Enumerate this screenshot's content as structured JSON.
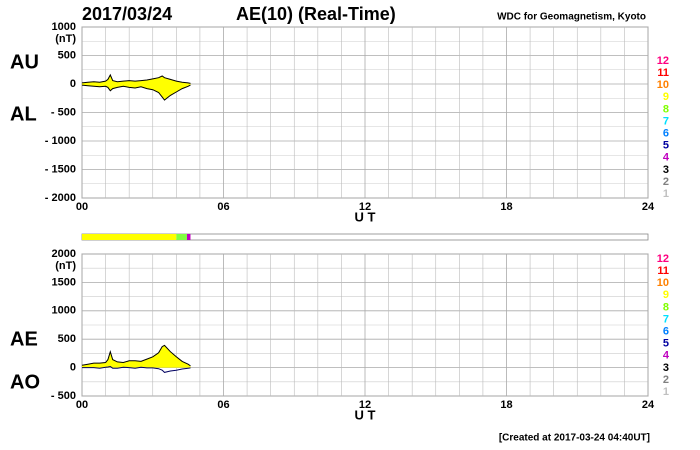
{
  "header": {
    "date": "2017/03/24",
    "title": "AE(10) (Real-Time)",
    "source": "WDC for Geomagnetism, Kyoto"
  },
  "footer": "[Created at 2017-03-24 04:40UT]",
  "coverage": [
    {
      "from": 0,
      "to": 4.0,
      "color": "#ffff00"
    },
    {
      "from": 4.0,
      "to": 4.45,
      "color": "#80ff40"
    },
    {
      "from": 4.45,
      "to": 4.6,
      "color": "#c000c0"
    }
  ],
  "chart_data": [
    {
      "type": "area",
      "ylabel": "(nT)",
      "xlabel": "U T",
      "x": [
        0,
        0.25,
        0.5,
        0.75,
        1,
        1.1,
        1.2,
        1.3,
        1.5,
        1.75,
        2,
        2.25,
        2.5,
        2.75,
        3,
        3.25,
        3.4,
        3.5,
        3.75,
        4,
        4.25,
        4.5,
        4.6
      ],
      "series": [
        {
          "name": "AU",
          "color": "#ffff00",
          "line_color": "#000000",
          "fill": true,
          "values": [
            20,
            30,
            40,
            30,
            50,
            80,
            160,
            60,
            40,
            50,
            60,
            50,
            60,
            70,
            90,
            110,
            140,
            110,
            80,
            50,
            30,
            20,
            10
          ]
        },
        {
          "name": "AL",
          "color": "#ffff00",
          "line_color": "#000000",
          "fill": true,
          "values": [
            -20,
            -30,
            -40,
            -50,
            -40,
            -60,
            -120,
            -80,
            -60,
            -40,
            -60,
            -70,
            -50,
            -80,
            -100,
            -150,
            -230,
            -280,
            -200,
            -140,
            -80,
            -40,
            -20
          ]
        }
      ],
      "xlim": [
        0,
        24
      ],
      "xticks": [
        {
          "value": 0,
          "label": "00"
        },
        {
          "value": 6,
          "label": "06"
        },
        12,
        18,
        24
      ],
      "ylim": [
        -2000,
        1000
      ],
      "yticks": [
        1000,
        500,
        0,
        {
          "value": -500,
          "label": "- 500"
        },
        {
          "value": -1000,
          "label": "- 1000"
        },
        {
          "value": -1500,
          "label": "- 1500"
        },
        {
          "value": -2000,
          "label": "- 2000"
        }
      ],
      "grid": true,
      "station_colors": [
        {
          "label": "12",
          "color": "#ff0080"
        },
        {
          "label": "11",
          "color": "#ff0000"
        },
        {
          "label": "10",
          "color": "#ff8000"
        },
        {
          "label": "9",
          "color": "#ffff00"
        },
        {
          "label": "8",
          "color": "#80ff00"
        },
        {
          "label": "7",
          "color": "#00e0ff"
        },
        {
          "label": "6",
          "color": "#0080ff"
        },
        {
          "label": "5",
          "color": "#0000a0"
        },
        {
          "label": "4",
          "color": "#c000c0"
        },
        {
          "label": "3",
          "color": "#000000"
        },
        {
          "label": "2",
          "color": "#808080"
        },
        {
          "label": "1",
          "color": "#c0c0c0"
        }
      ]
    },
    {
      "type": "area",
      "ylabel": "(nT)",
      "xlabel": "U T",
      "x": [
        0,
        0.25,
        0.5,
        0.75,
        1,
        1.1,
        1.2,
        1.3,
        1.5,
        1.75,
        2,
        2.25,
        2.5,
        2.75,
        3,
        3.25,
        3.4,
        3.5,
        3.75,
        4,
        4.25,
        4.5,
        4.6
      ],
      "series": [
        {
          "name": "AE",
          "color": "#ffff00",
          "line_color": "#000000",
          "fill": true,
          "values": [
            40,
            60,
            80,
            80,
            90,
            140,
            280,
            140,
            100,
            90,
            120,
            120,
            110,
            150,
            190,
            260,
            370,
            390,
            280,
            190,
            110,
            60,
            30
          ]
        },
        {
          "name": "AO",
          "color": "#ffff00",
          "line_color": "#000060",
          "fill": false,
          "values": [
            0,
            0,
            0,
            -10,
            5,
            10,
            20,
            -10,
            -10,
            5,
            0,
            -10,
            5,
            -5,
            -5,
            -20,
            -45,
            -85,
            -60,
            -45,
            -25,
            -10,
            -5
          ]
        }
      ],
      "xlim": [
        0,
        24
      ],
      "xticks": [
        {
          "value": 0,
          "label": "00"
        },
        {
          "value": 6,
          "label": "06"
        },
        12,
        18,
        24
      ],
      "ylim": [
        -500,
        2000
      ],
      "yticks": [
        2000,
        1500,
        1000,
        500,
        0,
        {
          "value": -500,
          "label": "- 500"
        }
      ],
      "grid": true,
      "station_colors": [
        {
          "label": "12",
          "color": "#ff0080"
        },
        {
          "label": "11",
          "color": "#ff0000"
        },
        {
          "label": "10",
          "color": "#ff8000"
        },
        {
          "label": "9",
          "color": "#ffff00"
        },
        {
          "label": "8",
          "color": "#80ff00"
        },
        {
          "label": "7",
          "color": "#00e0ff"
        },
        {
          "label": "6",
          "color": "#0080ff"
        },
        {
          "label": "5",
          "color": "#0000a0"
        },
        {
          "label": "4",
          "color": "#c000c0"
        },
        {
          "label": "3",
          "color": "#000000"
        },
        {
          "label": "2",
          "color": "#808080"
        },
        {
          "label": "1",
          "color": "#c0c0c0"
        }
      ]
    }
  ]
}
